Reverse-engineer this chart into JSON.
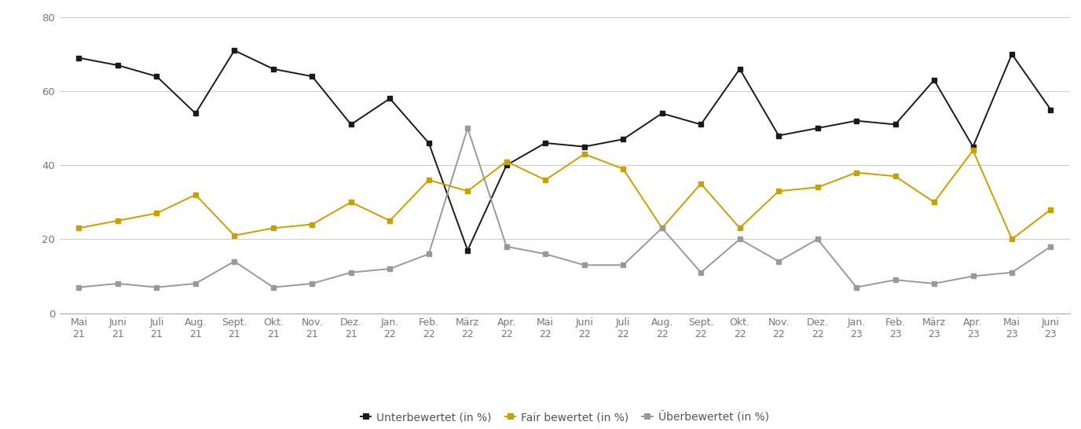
{
  "labels": [
    "Mai\n21",
    "Juni\n21",
    "Juli\n21",
    "Aug.\n21",
    "Sept.\n21",
    "Okt.\n21",
    "Nov.\n21",
    "Dez.\n21",
    "Jan.\n22",
    "Feb.\n22",
    "März\n22",
    "Apr.\n22",
    "Mai\n22",
    "Juni\n22",
    "Juli\n22",
    "Aug.\n22",
    "Sept.\n22",
    "Okt.\n22",
    "Nov.\n22",
    "Dez.\n22",
    "Jan.\n23",
    "Feb.\n23",
    "März\n23",
    "Apr.\n23",
    "Mai\n23",
    "Juni\n23"
  ],
  "unterbewertet": [
    69,
    67,
    64,
    54,
    71,
    66,
    64,
    51,
    58,
    46,
    17,
    40,
    46,
    45,
    47,
    54,
    51,
    66,
    48,
    50,
    52,
    51,
    63,
    45,
    70,
    55
  ],
  "fair_bewertet": [
    23,
    25,
    27,
    32,
    21,
    23,
    24,
    30,
    25,
    36,
    33,
    41,
    36,
    43,
    39,
    23,
    35,
    23,
    33,
    34,
    38,
    37,
    30,
    44,
    20,
    28
  ],
  "ueberbewertet": [
    7,
    8,
    7,
    8,
    14,
    7,
    8,
    11,
    12,
    16,
    50,
    18,
    16,
    13,
    13,
    23,
    11,
    20,
    14,
    20,
    7,
    9,
    8,
    10,
    11,
    18
  ],
  "unterbewertet_color": "#1a1a1a",
  "fair_bewertet_color": "#c8a000",
  "ueberbewertet_color": "#999999",
  "background_color": "#ffffff",
  "grid_color": "#cccccc",
  "ylim": [
    0,
    80
  ],
  "yticks": [
    0,
    20,
    40,
    60,
    80
  ],
  "legend_labels": [
    "Unterbewertet (in %)",
    "Fair bewertet (in %)",
    "Überbewertet (in %)"
  ],
  "fig_width": 13.76,
  "fig_height": 5.46,
  "dpi": 100
}
